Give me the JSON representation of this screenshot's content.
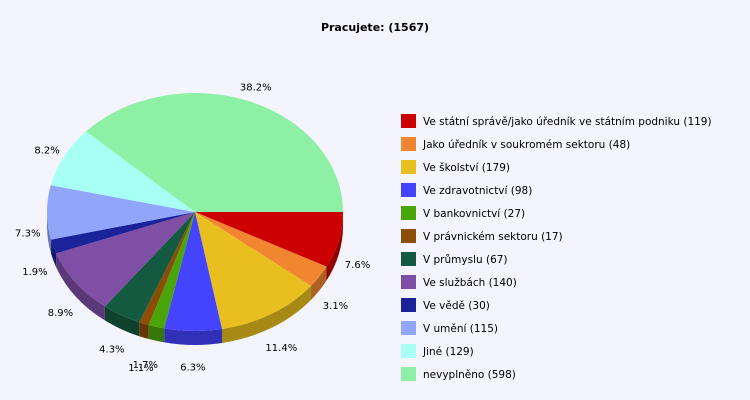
{
  "chart_data": {
    "type": "pie",
    "title": "Pracujete: (1567)",
    "legend_position": "right",
    "slices": [
      {
        "label": "Ve státní správě/jako úředník ve státním podniku (119)",
        "value": 119,
        "percent_label": "7.6%",
        "color": "#cc0000"
      },
      {
        "label": "Jako úředník v soukromém sektoru (48)",
        "value": 48,
        "percent_label": "3.1%",
        "color": "#f28630"
      },
      {
        "label": "Ve školství (179)",
        "value": 179,
        "percent_label": "11.4%",
        "color": "#e8bf1e"
      },
      {
        "label": "Ve zdravotnictví (98)",
        "value": 98,
        "percent_label": "6.3%",
        "color": "#4444ff"
      },
      {
        "label": "V bankovnictví (27)",
        "value": 27,
        "percent_label": "1.7%",
        "color": "#4aa50b"
      },
      {
        "label": "V právnickém sektoru (17)",
        "value": 17,
        "percent_label": "1.1%",
        "color": "#8b4e05"
      },
      {
        "label": "V průmyslu (67)",
        "value": 67,
        "percent_label": "4.3%",
        "color": "#145a40"
      },
      {
        "label": "Ve službách (140)",
        "value": 140,
        "percent_label": "8.9%",
        "color": "#7f4ea5"
      },
      {
        "label": "Ve vědě (30)",
        "value": 30,
        "percent_label": "1.9%",
        "color": "#1a239a"
      },
      {
        "label": "V umění (115)",
        "value": 115,
        "percent_label": "7.3%",
        "color": "#91a5fb"
      },
      {
        "label": "Jiné (129)",
        "value": 129,
        "percent_label": "8.2%",
        "color": "#a8fff4"
      },
      {
        "label": "nevyplněno (598)",
        "value": 598,
        "percent_label": "38.2%",
        "color": "#8ef0a5"
      }
    ]
  }
}
